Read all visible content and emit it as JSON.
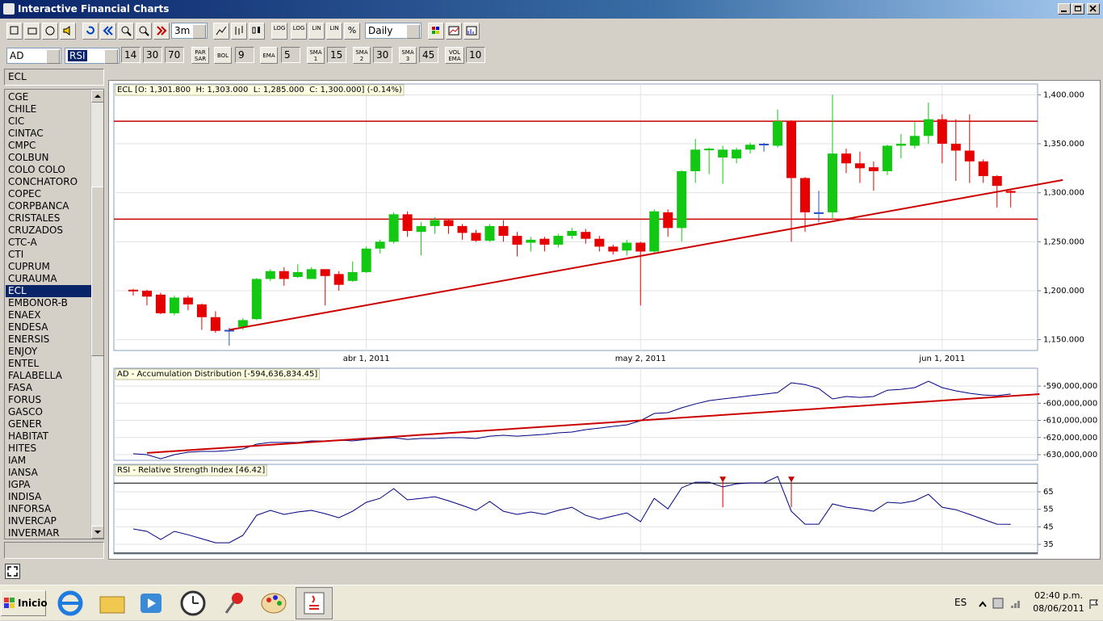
{
  "window": {
    "title": "Interactive Financial Charts"
  },
  "toolbar": {
    "period": "3m",
    "interval": "Daily",
    "scale_buttons": [
      "LOG",
      "LOG",
      "LIN",
      "LIN",
      "%"
    ]
  },
  "indicator_bar": {
    "lower_indicators": [
      "AD",
      "RSI"
    ],
    "rsi_params": [
      "14",
      "30",
      "70"
    ],
    "overlays": [
      {
        "button": "PAR SAR"
      },
      {
        "button": "BOL",
        "param": "9"
      },
      {
        "button": "EMA",
        "param": "5"
      },
      {
        "button": "SMA 1",
        "param": "15"
      },
      {
        "button": "SMA 2",
        "param": "30"
      },
      {
        "button": "SMA 3",
        "param": "45"
      },
      {
        "button": "VOL EMA",
        "param": "10"
      }
    ]
  },
  "sidebar": {
    "search": "ECL",
    "selected_index": 16,
    "symbols": [
      "CGE",
      "CHILE",
      "CIC",
      "CINTAC",
      "CMPC",
      "COLBUN",
      "COLO COLO",
      "CONCHATORO",
      "COPEC",
      "CORPBANCA",
      "CRISTALES",
      "CRUZADOS",
      "CTC-A",
      "CTI",
      "CUPRUM",
      "CURAUMA",
      "ECL",
      "EMBONOR-B",
      "ENAEX",
      "ENDESA",
      "ENERSIS",
      "ENJOY",
      "ENTEL",
      "FALABELLA",
      "FASA",
      "FORUS",
      "GASCO",
      "GENER",
      "HABITAT",
      "HITES",
      "IAM",
      "IANSA",
      "IGPA",
      "INDISA",
      "INFORSA",
      "INVERCAP",
      "INVERMAR"
    ]
  },
  "taskbar": {
    "start": "Inicio",
    "language": "ES",
    "time": "02:40 p.m.",
    "date": "08/06/2011"
  },
  "chart_data": [
    {
      "type": "candlestick",
      "title": "ECL [O: 1,301.800  H: 1,303.000  L: 1,285.000  C: 1,300.000] (-0.14%)",
      "categories": [
        null,
        null,
        null,
        null,
        null,
        null,
        null,
        null,
        null,
        null,
        null,
        null,
        null,
        null,
        null,
        null,
        null,
        "abr 1, 2011",
        null,
        null,
        null,
        null,
        null,
        null,
        null,
        null,
        null,
        null,
        null,
        null,
        null,
        null,
        null,
        null,
        null,
        null,
        null,
        "may 2, 2011",
        null,
        null,
        null,
        null,
        null,
        null,
        null,
        null,
        null,
        null,
        null,
        null,
        null,
        null,
        null,
        null,
        null,
        null,
        null,
        null,
        null,
        "jun 1, 2011",
        null,
        null,
        null,
        null,
        null
      ],
      "open": [
        1201,
        1200,
        1196,
        1177,
        1193,
        1186,
        1173,
        1160,
        1163,
        1171,
        1212,
        1220,
        1214,
        1212,
        1222,
        1217,
        1210,
        1219,
        1243,
        1250,
        1278,
        1260,
        1266,
        1272,
        1266,
        1259,
        1251,
        1266,
        1256,
        1249,
        1253,
        1247,
        1256,
        1260,
        1253,
        1245,
        1241,
        1249,
        1240,
        1280,
        1264,
        1322,
        1344,
        1336,
        1335,
        1344,
        1350,
        1348,
        1373,
        1315,
        1280,
        1280,
        1340,
        1330,
        1326,
        1322,
        1348,
        1348,
        1358,
        1375,
        1350,
        1343,
        1332,
        1317,
        1301.8
      ],
      "high": [
        1202,
        1201,
        1198,
        1195,
        1195,
        1187,
        1179,
        1162,
        1172,
        1213,
        1222,
        1224,
        1227,
        1224,
        1222,
        1220,
        1230,
        1245,
        1252,
        1280,
        1281,
        1270,
        1275,
        1273,
        1268,
        1262,
        1268,
        1272,
        1260,
        1255,
        1255,
        1258,
        1264,
        1263,
        1256,
        1247,
        1252,
        1250,
        1283,
        1283,
        1323,
        1355,
        1346,
        1348,
        1346,
        1351,
        1351,
        1385,
        1374,
        1316,
        1302,
        1400,
        1345,
        1342,
        1332,
        1349,
        1360,
        1372,
        1392,
        1380,
        1375,
        1380,
        1334,
        1318,
        1303
      ],
      "low": [
        1195,
        1185,
        1176,
        1175,
        1180,
        1160,
        1157,
        1144,
        1160,
        1170,
        1210,
        1205,
        1213,
        1212,
        1185,
        1200,
        1209,
        1218,
        1238,
        1248,
        1255,
        1236,
        1258,
        1258,
        1252,
        1250,
        1250,
        1250,
        1235,
        1240,
        1240,
        1244,
        1253,
        1248,
        1240,
        1237,
        1236,
        1185,
        1238,
        1255,
        1250,
        1310,
        1319,
        1309,
        1330,
        1340,
        1342,
        1346,
        1250,
        1260,
        1270,
        1274,
        1320,
        1310,
        1302,
        1318,
        1335,
        1345,
        1350,
        1330,
        1312,
        1310,
        1310,
        1285,
        1285
      ],
      "close": [
        1200,
        1194,
        1177,
        1193,
        1186,
        1173,
        1159,
        1160,
        1170,
        1212,
        1220,
        1212,
        1219,
        1222,
        1215,
        1206,
        1219,
        1243,
        1250,
        1278,
        1261,
        1266,
        1272,
        1266,
        1259,
        1251,
        1266,
        1256,
        1247,
        1252,
        1247,
        1256,
        1261,
        1253,
        1245,
        1240,
        1249,
        1240,
        1281,
        1264,
        1322,
        1344,
        1345,
        1344,
        1344,
        1349,
        1350,
        1373,
        1315,
        1280,
        1280,
        1340,
        1330,
        1325,
        1322,
        1348,
        1350,
        1358,
        1375,
        1350,
        1343,
        1332,
        1317,
        1307,
        1300
      ],
      "colors": {
        "up": "#12c812",
        "down": "#e60000",
        "flat": "#2850c8"
      },
      "ylim": [
        1139,
        1411
      ],
      "yticks": [
        {
          "value": 1400,
          "label": "1,400.000"
        },
        {
          "value": 1350,
          "label": "1,350.000"
        },
        {
          "value": 1300,
          "label": "1,300.000"
        },
        {
          "value": 1250,
          "label": "1,250.000"
        },
        {
          "value": 1200,
          "label": "1,200.000"
        },
        {
          "value": 1150,
          "label": "1,150.000"
        }
      ],
      "horizontal_lines": [
        1373,
        1273
      ],
      "line_color": "#cc0000",
      "trend_line": {
        "x": [
          7,
          67.8
        ],
        "y": [
          1160,
          1313
        ]
      },
      "grid": true
    },
    {
      "type": "line",
      "title": "AD - Accumulation Distribution [-594,636,834.45]",
      "values": [
        -629500000,
        -630000000,
        -632400000,
        -630000000,
        -628600000,
        -628100000,
        -628100000,
        -627600000,
        -626700000,
        -623900000,
        -622900000,
        -622900000,
        -622900000,
        -622000000,
        -622000000,
        -621500000,
        -622000000,
        -621100000,
        -620600000,
        -620100000,
        -621100000,
        -620600000,
        -620600000,
        -620100000,
        -620100000,
        -620600000,
        -619200000,
        -618700000,
        -619200000,
        -618700000,
        -618200000,
        -617300000,
        -616800000,
        -615400000,
        -614500000,
        -613500000,
        -612600000,
        -610200000,
        -606000000,
        -605500000,
        -602700000,
        -600400000,
        -598500000,
        -597500000,
        -596600000,
        -595600000,
        -594700000,
        -593800000,
        -588100000,
        -589100000,
        -591400000,
        -597500000,
        -596100000,
        -596600000,
        -596100000,
        -592400000,
        -591900000,
        -590900000,
        -587200000,
        -590900000,
        -592800000,
        -594200000,
        -595200000,
        -595600000,
        -594636834.45
      ],
      "color": "#000080",
      "ylim": [
        -633300000,
        -579600000
      ],
      "yticks": [
        {
          "value": -590000000,
          "label": "-590,000,000"
        },
        {
          "value": -600000000,
          "label": "-600,000,000"
        },
        {
          "value": -610000000,
          "label": "-610,000,000"
        },
        {
          "value": -620000000,
          "label": "-620,000,000"
        },
        {
          "value": -630000000,
          "label": "-630,000,000"
        }
      ],
      "trend_line": {
        "x": [
          1,
          66.1
        ],
        "y": [
          -629000000,
          -594700000
        ]
      },
      "line_color": "#cc0000",
      "grid": true
    },
    {
      "type": "line",
      "title": "RSI - Relative Strength Index [46.42]",
      "values": [
        43.8,
        42.4,
        37.8,
        42.4,
        40.5,
        38.2,
        35.9,
        35.9,
        40.1,
        51.6,
        54.4,
        52.1,
        53.5,
        54.4,
        52.5,
        50.2,
        53.9,
        59.0,
        61.3,
        66.8,
        60.4,
        61.3,
        62.2,
        59.9,
        57.2,
        54.4,
        59.5,
        53.9,
        52.1,
        53.5,
        52.1,
        54.4,
        56.2,
        51.6,
        49.3,
        51.2,
        53.0,
        47.9,
        61.3,
        55.3,
        67.3,
        70.5,
        70.5,
        67.8,
        69.6,
        70.1,
        70.1,
        73.8,
        53.9,
        46.5,
        46.5,
        58.1,
        56.2,
        55.3,
        53.9,
        59.0,
        58.5,
        59.9,
        63.6,
        56.2,
        54.8,
        52.1,
        49.3,
        46.5,
        46.42
      ],
      "color": "#000080",
      "ylim": [
        29.5,
        80.7
      ],
      "yticks": [
        65,
        55,
        45,
        35
      ],
      "horizontal_lines": [
        70,
        30
      ],
      "line_color": "#000000",
      "signals": [
        43,
        48
      ],
      "signal_color": "#cc0000",
      "grid": true
    }
  ]
}
